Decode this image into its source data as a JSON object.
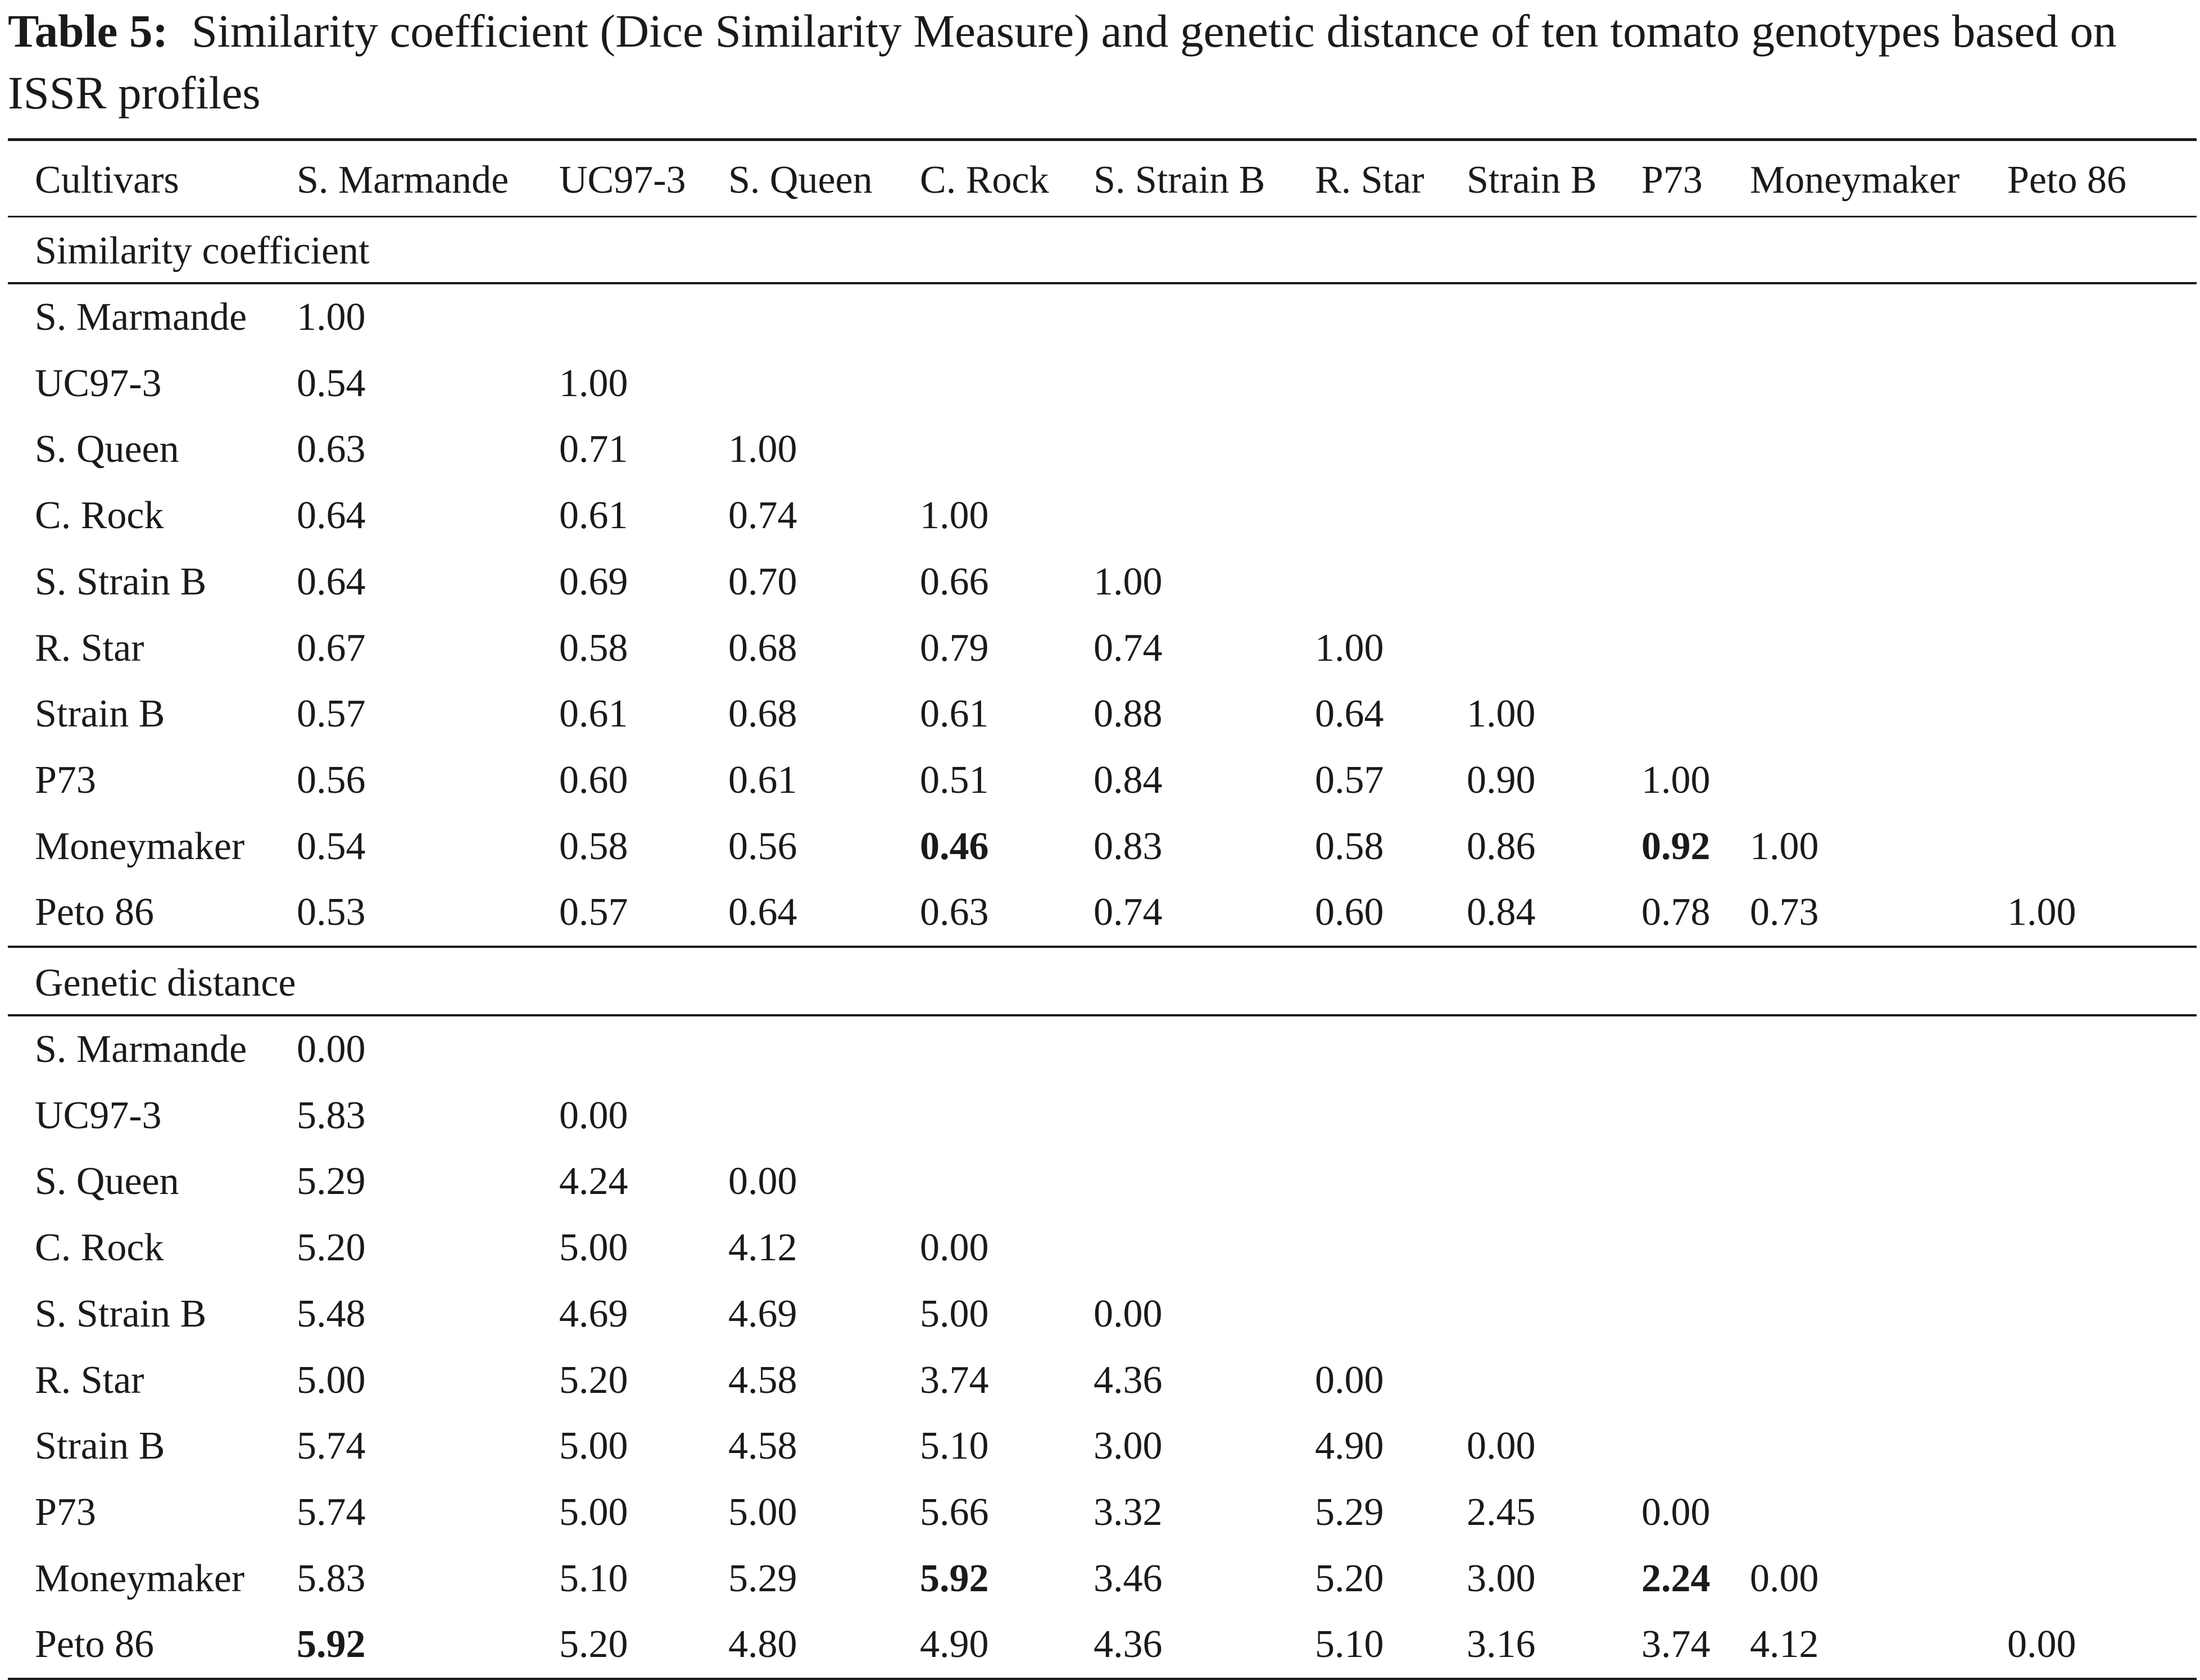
{
  "table": {
    "caption_label": "Table 5:",
    "caption_text": "Similarity coefficient (Dice Similarity Measure) and genetic distance of ten tomato genotypes based on ISSR profiles",
    "headers": [
      "Cultivars",
      "S. Marmande",
      "UC97-3",
      "S. Queen",
      "C. Rock",
      "S. Strain B",
      "R. Star",
      "Strain B",
      "P73",
      "Moneymaker",
      "Peto 86"
    ],
    "sections": [
      {
        "title": "Similarity coefficient",
        "rows": [
          {
            "name": "S. Marmande",
            "values": [
              "1.00"
            ]
          },
          {
            "name": "UC97-3",
            "values": [
              "0.54",
              "1.00"
            ]
          },
          {
            "name": "S. Queen",
            "values": [
              "0.63",
              "0.71",
              "1.00"
            ]
          },
          {
            "name": "C. Rock",
            "values": [
              "0.64",
              "0.61",
              "0.74",
              "1.00"
            ]
          },
          {
            "name": "S. Strain B",
            "values": [
              "0.64",
              "0.69",
              "0.70",
              "0.66",
              "1.00"
            ]
          },
          {
            "name": "R. Star",
            "values": [
              "0.67",
              "0.58",
              "0.68",
              "0.79",
              "0.74",
              "1.00"
            ]
          },
          {
            "name": "Strain B",
            "values": [
              "0.57",
              "0.61",
              "0.68",
              "0.61",
              "0.88",
              "0.64",
              "1.00"
            ]
          },
          {
            "name": "P73",
            "values": [
              "0.56",
              "0.60",
              "0.61",
              "0.51",
              "0.84",
              "0.57",
              "0.90",
              "1.00"
            ]
          },
          {
            "name": "Moneymaker",
            "values": [
              "0.54",
              "0.58",
              "0.56",
              "0.46",
              "0.83",
              "0.58",
              "0.86",
              "0.92",
              "1.00"
            ],
            "bold": [
              3,
              7
            ]
          },
          {
            "name": "Peto 86",
            "values": [
              "0.53",
              "0.57",
              "0.64",
              "0.63",
              "0.74",
              "0.60",
              "0.84",
              "0.78",
              "0.73",
              "1.00"
            ]
          }
        ]
      },
      {
        "title": "Genetic distance",
        "rows": [
          {
            "name": "S. Marmande",
            "values": [
              "0.00"
            ]
          },
          {
            "name": "UC97-3",
            "values": [
              "5.83",
              "0.00"
            ]
          },
          {
            "name": "S. Queen",
            "values": [
              "5.29",
              "4.24",
              "0.00"
            ]
          },
          {
            "name": "C. Rock",
            "values": [
              "5.20",
              "5.00",
              "4.12",
              "0.00"
            ]
          },
          {
            "name": "S. Strain B",
            "values": [
              "5.48",
              "4.69",
              "4.69",
              "5.00",
              "0.00"
            ]
          },
          {
            "name": "R. Star",
            "values": [
              "5.00",
              "5.20",
              "4.58",
              "3.74",
              "4.36",
              "0.00"
            ]
          },
          {
            "name": "Strain B",
            "values": [
              "5.74",
              "5.00",
              "4.58",
              "5.10",
              "3.00",
              "4.90",
              "0.00"
            ]
          },
          {
            "name": "P73",
            "values": [
              "5.74",
              "5.00",
              "5.00",
              "5.66",
              "3.32",
              "5.29",
              "2.45",
              "0.00"
            ]
          },
          {
            "name": "Moneymaker",
            "values": [
              "5.83",
              "5.10",
              "5.29",
              "5.92",
              "3.46",
              "5.20",
              "3.00",
              "2.24",
              "0.00"
            ],
            "bold": [
              3,
              7
            ]
          },
          {
            "name": "Peto 86",
            "values": [
              "5.92",
              "5.20",
              "4.80",
              "4.90",
              "4.36",
              "5.10",
              "3.16",
              "3.74",
              "4.12",
              "0.00"
            ],
            "bold": [
              0
            ]
          }
        ]
      }
    ]
  }
}
